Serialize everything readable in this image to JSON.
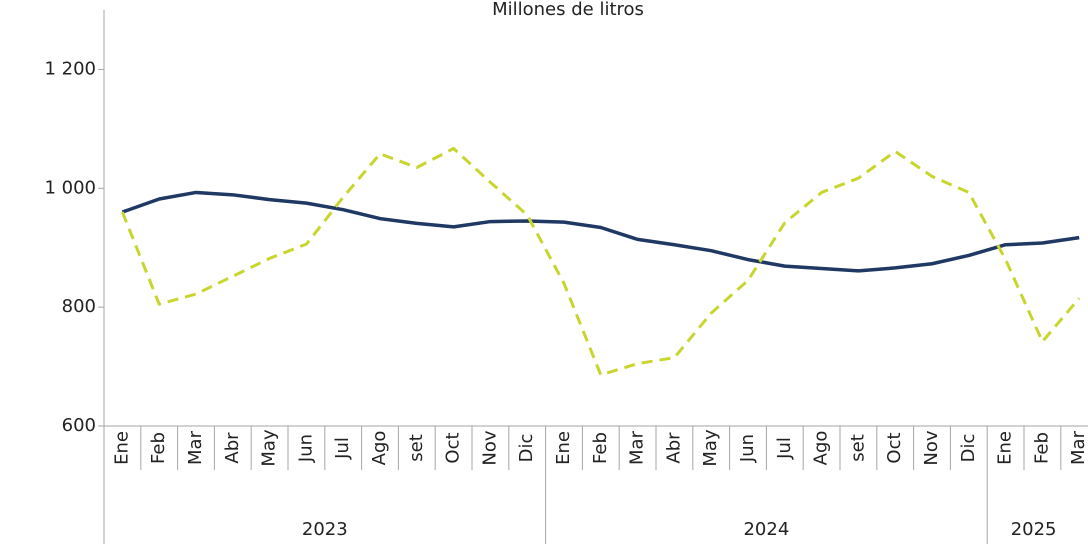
{
  "chart_data": {
    "type": "line",
    "title": "Millones de litros",
    "category_groups": [
      {
        "name": "2023",
        "categories": [
          "Ene",
          "Feb",
          "Mar",
          "Abr",
          "May",
          "Jun",
          "Jul",
          "Ago",
          "set",
          "Oct",
          "Nov",
          "Dic"
        ]
      },
      {
        "name": "2024",
        "categories": [
          "Ene",
          "Feb",
          "Mar",
          "Abr",
          "May",
          "Jun",
          "Jul",
          "Ago",
          "set",
          "Oct",
          "Nov",
          "Dic"
        ]
      },
      {
        "name": "2025",
        "categories": [
          "Ene",
          "Feb",
          "Mar"
        ]
      }
    ],
    "series": [
      {
        "color": "#1f3864",
        "dash": false,
        "values": [
          960,
          982,
          993,
          989,
          981,
          975,
          964,
          949,
          941,
          935,
          944,
          945,
          943,
          934,
          914,
          905,
          895,
          880,
          869,
          865,
          861,
          866,
          873,
          887,
          905,
          908,
          917
        ]
      },
      {
        "color": "#c9d52f",
        "dash": true,
        "values": [
          960,
          805,
          822,
          852,
          882,
          906,
          985,
          1058,
          1035,
          1067,
          1010,
          955,
          840,
          686,
          705,
          715,
          790,
          845,
          942,
          993,
          1017,
          1062,
          1020,
          993,
          880,
          742,
          815
        ]
      }
    ],
    "ylim": [
      600,
      1300
    ],
    "yticks": [
      600,
      800,
      {
        "value": 1000,
        "label": "1 000"
      },
      {
        "value": 1200,
        "label": "1 200"
      }
    ]
  }
}
